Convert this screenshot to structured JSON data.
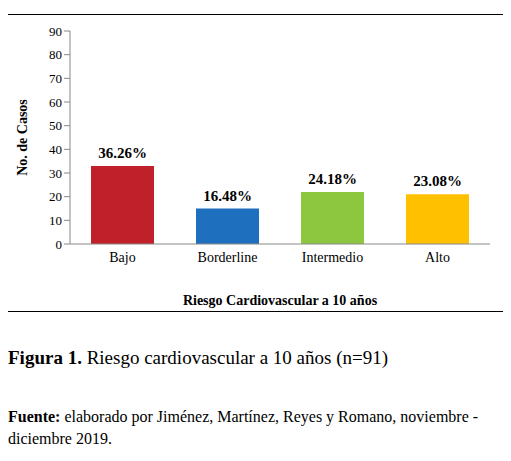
{
  "chart_data": {
    "type": "bar",
    "title": "Figura 1. Riesgo cardiovascular a 10 años (n=91)",
    "annotations": [
      "Fuente: elaborado por Jiménez, Martínez, Reyes y Romano, noviembre - diciembre 2019."
    ],
    "x_label": "Riesgo Cardiovascular a 10 años",
    "y_label": "No. de Casos",
    "categories": [
      "Bajo",
      "Borderline",
      "Intermedio",
      "Alto"
    ],
    "values": [
      33,
      15,
      22,
      21
    ],
    "value_labels": [
      "36.26%",
      "16.48%",
      "24.18%",
      "23.08%"
    ],
    "colors": [
      "#c0202a",
      "#1f6fbf",
      "#8dc63f",
      "#ffc000"
    ],
    "ylim": [
      0,
      90
    ],
    "yticks": [
      0,
      10,
      20,
      30,
      40,
      50,
      60,
      70,
      80,
      90
    ],
    "grid": false,
    "data_labels": true
  }
}
